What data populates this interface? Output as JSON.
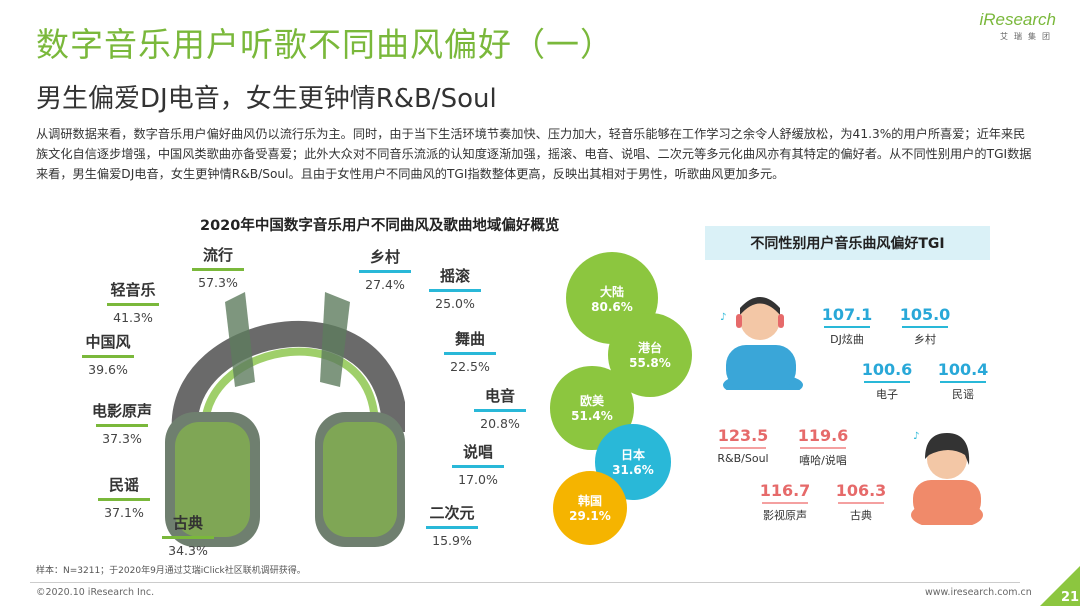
{
  "header": {
    "title": "数字音乐用户听歌不同曲风偏好（一）",
    "subtitle": "男生偏爱DJ电音，女生更钟情R&B/Soul",
    "logo_main": "iResearch",
    "logo_sub": "艾瑞集团"
  },
  "body_text": "从调研数据来看，数字音乐用户偏好曲风仍以流行乐为主。同时，由于当下生活环境节奏加快、压力加大，轻音乐能够在工作学习之余令人舒缓放松，为41.3%的用户所喜爱；近年来民族文化自信逐步增强，中国风类歌曲亦备受喜爱；此外大众对不同音乐流派的认知度逐渐加强，摇滚、电音、说唱、二次元等多元化曲风亦有其特定的偏好者。从不同性别用户的TGI数据来看，男生偏爱DJ电音，女生更钟情R&B/Soul。且由于女性用户不同曲风的TGI指数整体更高，反映出其相对于男性，听歌曲风更加多元。",
  "chart_data": [
    {
      "type": "bar",
      "title": "2020年中国数字音乐用户不同曲风及歌曲地域偏好概览",
      "categories": [
        "流行",
        "轻音乐",
        "中国风",
        "电影原声",
        "民谣",
        "古典",
        "乡村",
        "摇滚",
        "舞曲",
        "电音",
        "说唱",
        "二次元"
      ],
      "values": [
        57.3,
        41.3,
        39.6,
        37.3,
        37.1,
        34.3,
        27.4,
        25.0,
        22.5,
        20.8,
        17.0,
        15.9
      ],
      "value_labels": [
        "57.3%",
        "41.3%",
        "39.6%",
        "37.3%",
        "37.1%",
        "34.3%",
        "27.4%",
        "25.0%",
        "22.5%",
        "20.8%",
        "17.0%",
        "15.9%"
      ],
      "unit": "%"
    },
    {
      "type": "scatter",
      "categories": [
        "大陆",
        "港台",
        "欧美",
        "日本",
        "韩国"
      ],
      "values": [
        80.6,
        55.8,
        51.4,
        31.6,
        29.1
      ],
      "value_labels": [
        "80.6%",
        "55.8%",
        "51.4%",
        "31.6%",
        "29.1%"
      ],
      "colors": [
        "#8cc63f",
        "#8cc63f",
        "#8cc63f",
        "#29b8d8",
        "#f5b400"
      ],
      "unit": "%"
    },
    {
      "type": "bar",
      "title": "不同性别用户音乐曲风偏好TGI",
      "series": [
        {
          "categories": [
            "DJ炫曲",
            "乡村",
            "电子",
            "民谣"
          ],
          "values": [
            107.1,
            105.0,
            100.6,
            100.4
          ],
          "value_labels": [
            "107.1",
            "105.0",
            "100.6",
            "100.4"
          ],
          "color": "#29a8d8"
        },
        {
          "categories": [
            "R&B/Soul",
            "嘻哈/说唱",
            "影视原声",
            "古典"
          ],
          "values": [
            123.5,
            119.6,
            116.7,
            106.3
          ],
          "value_labels": [
            "123.5",
            "119.6",
            "116.7",
            "106.3"
          ],
          "color": "#e66a6a"
        }
      ]
    }
  ],
  "footer": {
    "note": "样本：N=3211；于2020年9月通过艾瑞iClick社区联机调研获得。",
    "copyright": "©2020.10 iResearch Inc.",
    "website": "www.iresearch.com.cn",
    "page_number": "21"
  },
  "colors": {
    "accent_green": "#7ab83b",
    "accent_blue": "#29b8d8",
    "female_red": "#e66a6a"
  }
}
